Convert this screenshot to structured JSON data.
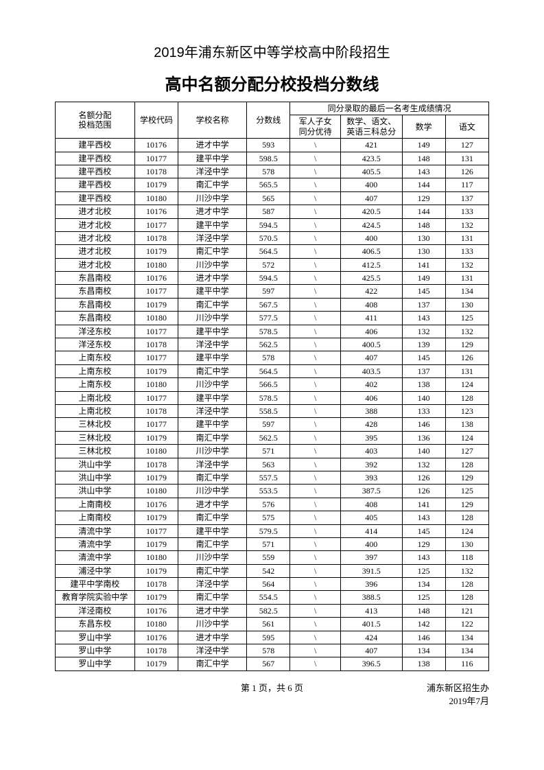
{
  "title1": "2019年浦东新区中等学校高中阶段招生",
  "title2": "高中名额分配分校投档分数线",
  "header": {
    "range": "名额分配\n投档范围",
    "code": "学校代码",
    "name": "学校名称",
    "score": "分数线",
    "tie_group": "同分录取的最后一名考生成绩情况",
    "jun": "军人子女\n同分优待",
    "three": "数学、语文、\n英语三科总分",
    "math": "数学",
    "lang": "语文"
  },
  "rows": [
    [
      "建平西校",
      "10176",
      "进才中学",
      "593",
      "\\",
      "421",
      "149",
      "127"
    ],
    [
      "建平西校",
      "10177",
      "建平中学",
      "598.5",
      "\\",
      "423.5",
      "148",
      "131"
    ],
    [
      "建平西校",
      "10178",
      "洋泾中学",
      "578",
      "\\",
      "405.5",
      "143",
      "126"
    ],
    [
      "建平西校",
      "10179",
      "南汇中学",
      "565.5",
      "\\",
      "400",
      "144",
      "117"
    ],
    [
      "建平西校",
      "10180",
      "川沙中学",
      "565",
      "\\",
      "407",
      "129",
      "137"
    ],
    [
      "进才北校",
      "10176",
      "进才中学",
      "587",
      "\\",
      "420.5",
      "144",
      "133"
    ],
    [
      "进才北校",
      "10177",
      "建平中学",
      "594.5",
      "\\",
      "424.5",
      "148",
      "132"
    ],
    [
      "进才北校",
      "10178",
      "洋泾中学",
      "570.5",
      "\\",
      "400",
      "130",
      "131"
    ],
    [
      "进才北校",
      "10179",
      "南汇中学",
      "564.5",
      "\\",
      "406.5",
      "130",
      "133"
    ],
    [
      "进才北校",
      "10180",
      "川沙中学",
      "572",
      "\\",
      "412.5",
      "141",
      "132"
    ],
    [
      "东昌南校",
      "10176",
      "进才中学",
      "594.5",
      "\\",
      "425.5",
      "149",
      "131"
    ],
    [
      "东昌南校",
      "10177",
      "建平中学",
      "597",
      "\\",
      "422",
      "145",
      "134"
    ],
    [
      "东昌南校",
      "10179",
      "南汇中学",
      "567.5",
      "\\",
      "408",
      "137",
      "130"
    ],
    [
      "东昌南校",
      "10180",
      "川沙中学",
      "577.5",
      "\\",
      "411",
      "143",
      "125"
    ],
    [
      "洋泾东校",
      "10177",
      "建平中学",
      "578.5",
      "\\",
      "406",
      "132",
      "132"
    ],
    [
      "洋泾东校",
      "10178",
      "洋泾中学",
      "562.5",
      "\\",
      "400.5",
      "139",
      "129"
    ],
    [
      "上南东校",
      "10177",
      "建平中学",
      "578",
      "\\",
      "407",
      "145",
      "126"
    ],
    [
      "上南东校",
      "10179",
      "南汇中学",
      "564.5",
      "\\",
      "403.5",
      "137",
      "131"
    ],
    [
      "上南东校",
      "10180",
      "川沙中学",
      "566.5",
      "\\",
      "402",
      "138",
      "124"
    ],
    [
      "上南北校",
      "10177",
      "建平中学",
      "578.5",
      "\\",
      "406",
      "140",
      "128"
    ],
    [
      "上南北校",
      "10178",
      "洋泾中学",
      "558.5",
      "\\",
      "388",
      "133",
      "123"
    ],
    [
      "三林北校",
      "10177",
      "建平中学",
      "597",
      "\\",
      "428",
      "146",
      "138"
    ],
    [
      "三林北校",
      "10179",
      "南汇中学",
      "562.5",
      "\\",
      "395",
      "136",
      "124"
    ],
    [
      "三林北校",
      "10180",
      "川沙中学",
      "571",
      "\\",
      "403",
      "140",
      "127"
    ],
    [
      "洪山中学",
      "10178",
      "洋泾中学",
      "563",
      "\\",
      "392",
      "132",
      "128"
    ],
    [
      "洪山中学",
      "10179",
      "南汇中学",
      "557.5",
      "\\",
      "393",
      "126",
      "129"
    ],
    [
      "洪山中学",
      "10180",
      "川沙中学",
      "553.5",
      "\\",
      "387.5",
      "126",
      "125"
    ],
    [
      "上南南校",
      "10176",
      "进才中学",
      "576",
      "\\",
      "408",
      "141",
      "129"
    ],
    [
      "上南南校",
      "10179",
      "南汇中学",
      "575",
      "\\",
      "405",
      "143",
      "128"
    ],
    [
      "清流中学",
      "10177",
      "建平中学",
      "579.5",
      "\\",
      "414",
      "145",
      "124"
    ],
    [
      "清流中学",
      "10179",
      "南汇中学",
      "571",
      "\\",
      "400",
      "129",
      "130"
    ],
    [
      "清流中学",
      "10180",
      "川沙中学",
      "559",
      "\\",
      "397",
      "143",
      "118"
    ],
    [
      "浦泾中学",
      "10179",
      "南汇中学",
      "542",
      "\\",
      "391.5",
      "125",
      "132"
    ],
    [
      "建平中学南校",
      "10178",
      "洋泾中学",
      "564",
      "\\",
      "396",
      "134",
      "128"
    ],
    [
      "教育学院实验中学",
      "10179",
      "南汇中学",
      "554.5",
      "\\",
      "388.5",
      "125",
      "128"
    ],
    [
      "洋泾南校",
      "10176",
      "进才中学",
      "582.5",
      "\\",
      "413",
      "148",
      "121"
    ],
    [
      "东昌东校",
      "10180",
      "川沙中学",
      "561",
      "\\",
      "401.5",
      "142",
      "122"
    ],
    [
      "罗山中学",
      "10176",
      "进才中学",
      "595",
      "\\",
      "424",
      "146",
      "134"
    ],
    [
      "罗山中学",
      "10178",
      "洋泾中学",
      "578",
      "\\",
      "407",
      "134",
      "134"
    ],
    [
      "罗山中学",
      "10179",
      "南汇中学",
      "567",
      "\\",
      "396.5",
      "138",
      "116"
    ]
  ],
  "footer": {
    "page": "第 1 页，共 6 页",
    "org": "浦东新区招生办",
    "date": "2019年7月"
  }
}
